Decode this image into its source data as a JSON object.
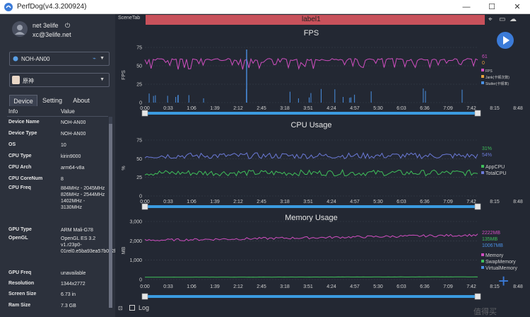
{
  "window": {
    "title": "PerfDog(v4.3.200924)"
  },
  "user": {
    "name": "net 3elife",
    "email": "xc@3elife.net"
  },
  "device_select": {
    "value": "NOH-AN00"
  },
  "app_select": {
    "value": "原神"
  },
  "tabs": [
    {
      "label": "Device"
    },
    {
      "label": "Setting"
    },
    {
      "label": "About"
    }
  ],
  "info": {
    "col_key": "Info",
    "col_value": "Value",
    "rows": [
      {
        "k": "Device Name",
        "v": "NOH-AN00"
      },
      {
        "k": "Device Type",
        "v": "NOH-AN00"
      },
      {
        "k": "OS",
        "v": "10"
      },
      {
        "k": "CPU Type",
        "v": "kirin9000"
      },
      {
        "k": "CPU Arch",
        "v": "arm64-v8a"
      },
      {
        "k": "CPU CoreNum",
        "v": "8"
      },
      {
        "k": "CPU Freq",
        "v": "884MHz - 2045MHz 826MHz - 2544MHz 1402MHz - 3130MHz"
      },
      {
        "k": "GPU Type",
        "v": "ARM Mali-G78"
      },
      {
        "k": "OpenGL",
        "v": "OpenGL ES 3.2 v1.r23p0-01rel0.e5ba93ea57b092bec7036a5eee339558"
      },
      {
        "k": "GPU Freq",
        "v": "unavailable"
      },
      {
        "k": "Resolution",
        "v": "1344x2772"
      },
      {
        "k": "Screen Size",
        "v": "6.73 in"
      },
      {
        "k": "Ram Size",
        "v": "7.3 GB"
      }
    ]
  },
  "scene": {
    "tab": "SceneTab",
    "label": "label1"
  },
  "log": {
    "label": "Log"
  },
  "watermark": "值得买",
  "time_ticks": [
    "0:00",
    "0:33",
    "1:06",
    "1:39",
    "2:12",
    "2:45",
    "3:18",
    "3:51",
    "4:24",
    "4:57",
    "5:30",
    "6:03",
    "6:36",
    "7:09",
    "7:42",
    "8:15",
    "8:48",
    "9:21",
    "9:54"
  ],
  "chart_data": [
    {
      "type": "line",
      "title": "FPS",
      "ylabel": "FPS",
      "ylim": [
        0,
        75
      ],
      "yticks": [
        "75",
        "50",
        "25",
        "0"
      ],
      "x_unit": "mm:ss",
      "series": [
        {
          "name": "FPS",
          "color": "#d04ec0",
          "current": "61",
          "approx_level": 60
        },
        {
          "name": "Jank(卡顿次数)",
          "color": "#e6a23c",
          "current": "0"
        },
        {
          "name": "Stutter(卡顿率)",
          "color": "#4a90e2"
        }
      ]
    },
    {
      "type": "line",
      "title": "CPU Usage",
      "ylabel": "%",
      "ylim": [
        0,
        75
      ],
      "yticks": [
        "75",
        "50",
        "25",
        "0"
      ],
      "series": [
        {
          "name": "AppCPU",
          "color": "#3fbf5a",
          "current": "31%",
          "approx_level": 31
        },
        {
          "name": "TotalCPU",
          "color": "#6b7ad8",
          "current": "54%",
          "approx_level": 54
        }
      ]
    },
    {
      "type": "line",
      "title": "Memory Usage",
      "ylabel": "MB",
      "ylim": [
        0,
        3000
      ],
      "yticks": [
        "3,000",
        "2,000",
        "1,000",
        "0"
      ],
      "series": [
        {
          "name": "Memory",
          "color": "#d04ec0",
          "current": "2222MB",
          "approx_level": 2300
        },
        {
          "name": "SwapMemory",
          "color": "#3fbf5a",
          "current": "135MB",
          "approx_level": 135
        },
        {
          "name": "VirtualMemory",
          "color": "#4a90e2",
          "current": "10067MB"
        }
      ]
    }
  ]
}
